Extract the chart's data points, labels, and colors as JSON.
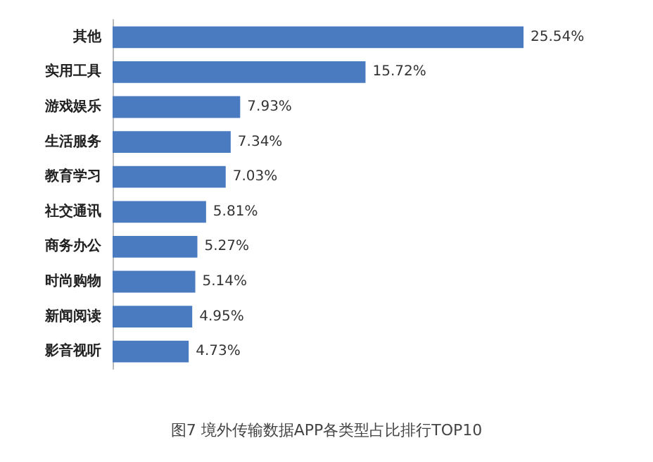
{
  "chart_data": {
    "type": "bar",
    "orientation": "horizontal",
    "title": "图7 境外传输数据APP各类型占比排行TOP10",
    "categories": [
      "其他",
      "实用工具",
      "游戏娱乐",
      "生活服务",
      "教育学习",
      "社交通讯",
      "商务办公",
      "时尚购物",
      "新闻阅读",
      "影音视听"
    ],
    "values": [
      25.54,
      15.72,
      7.93,
      7.34,
      7.03,
      5.81,
      5.27,
      5.14,
      4.95,
      4.73
    ],
    "value_labels": [
      "25.54%",
      "15.72%",
      "7.93%",
      "7.34%",
      "7.03%",
      "5.81%",
      "5.27%",
      "5.14%",
      "4.95%",
      "4.73%"
    ],
    "color": "#4a7bc0"
  }
}
